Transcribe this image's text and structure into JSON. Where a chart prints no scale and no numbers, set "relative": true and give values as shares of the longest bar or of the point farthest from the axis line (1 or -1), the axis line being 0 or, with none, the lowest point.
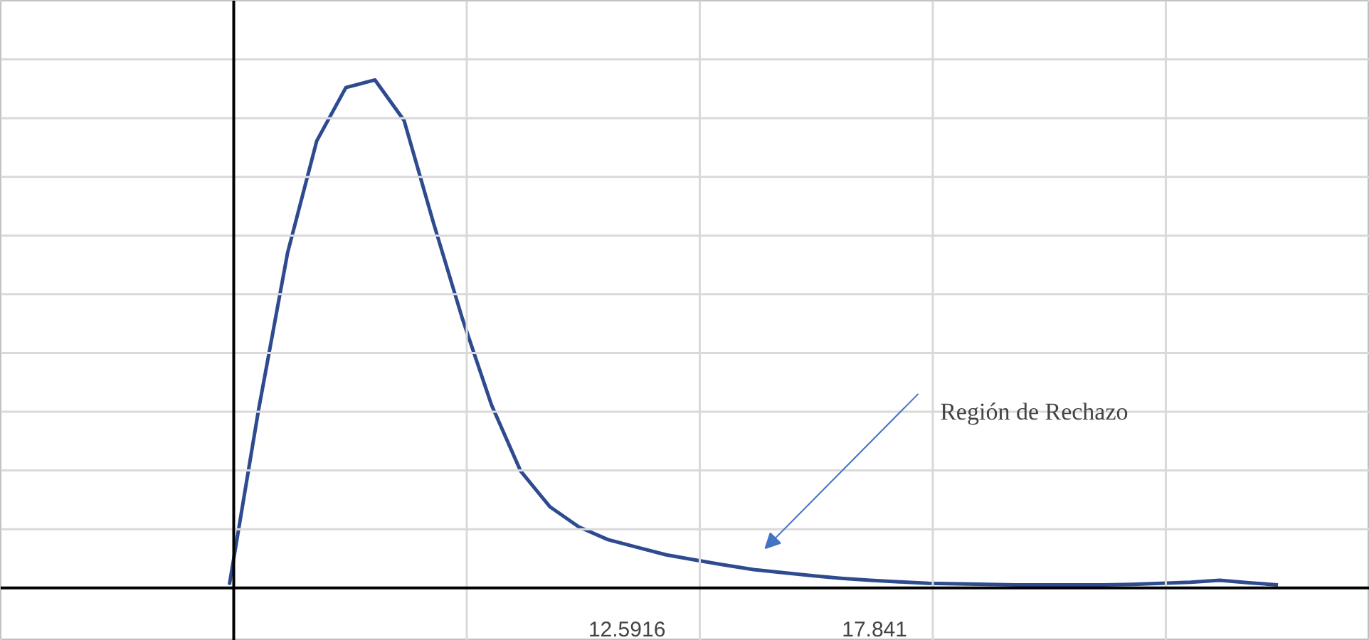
{
  "chart_data": {
    "type": "line",
    "relative": true,
    "grid": true,
    "color": "#2f4b8f",
    "categories": [
      null,
      null,
      null,
      null,
      null,
      null,
      null,
      null,
      null,
      null,
      null,
      null,
      null,
      null,
      null,
      null,
      null,
      null,
      null,
      null,
      null,
      null,
      null,
      null,
      null,
      null,
      null,
      null,
      null,
      null,
      null,
      null,
      null,
      null,
      null,
      null,
      null
    ],
    "values": [
      0.006,
      0.35,
      0.66,
      0.88,
      0.985,
      1.0,
      0.92,
      0.72,
      0.53,
      0.36,
      0.23,
      0.16,
      0.12,
      0.095,
      0.08,
      0.065,
      0.055,
      0.045,
      0.036,
      0.03,
      0.024,
      0.019,
      0.015,
      0.012,
      0.009,
      0.008,
      0.007,
      0.006,
      0.006,
      0.006,
      0.006,
      0.007,
      0.009,
      0.011,
      0.015,
      0.01,
      0.006
    ],
    "annotations": [
      "Región de Rechazo",
      "12.5916",
      "17.841"
    ]
  }
}
